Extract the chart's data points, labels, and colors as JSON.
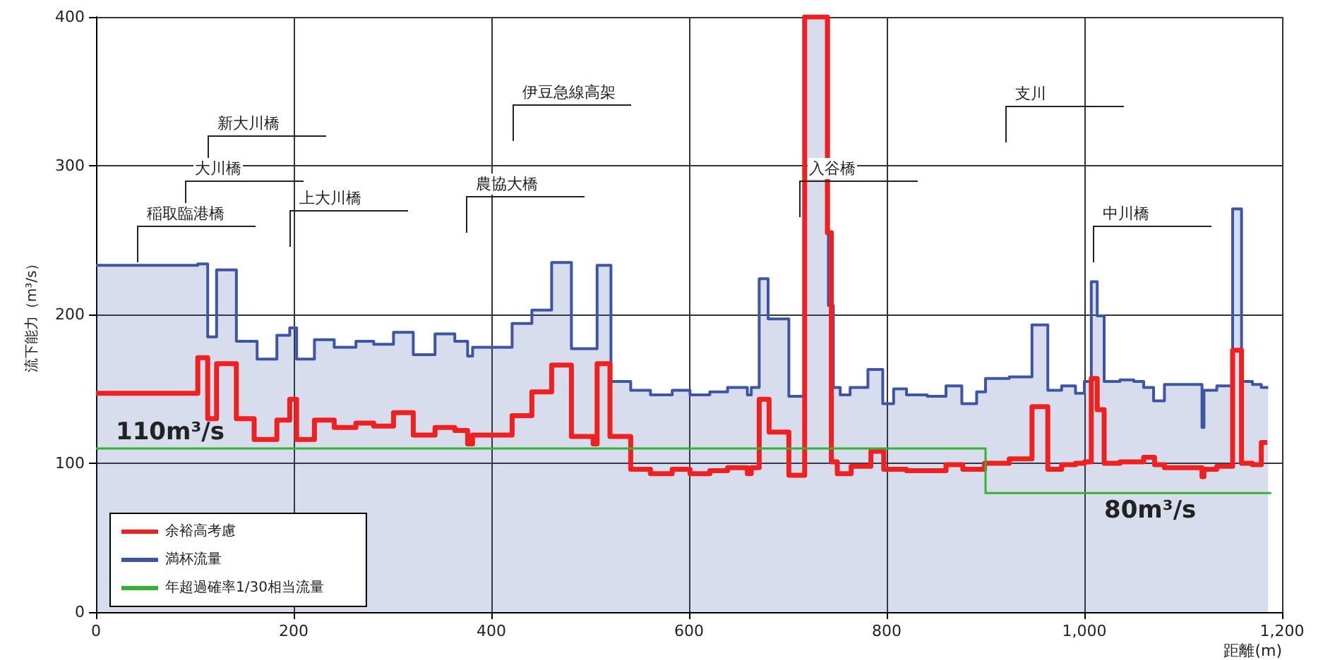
{
  "chart_data": {
    "type": "step",
    "xlabel": "距離(m)",
    "ylabel": "流下能力（m³/s）",
    "xlim": [
      0,
      1200
    ],
    "xticks": [
      0,
      200,
      400,
      600,
      800,
      {
        "value": 1000,
        "label": "1,000"
      },
      {
        "value": 1200,
        "label": "1,200"
      }
    ],
    "ylim": [
      0,
      400
    ],
    "yticks": [
      0,
      100,
      200,
      300,
      400
    ],
    "grid": true,
    "legend": "bottom left",
    "marker": "none",
    "line_style": "solid",
    "series": [
      {
        "name": "余裕高考慮",
        "color": "#ee2020",
        "x": [
          0,
          103,
          113,
          122,
          142,
          160,
          183,
          196,
          203,
          221,
          241,
          263,
          281,
          301,
          321,
          343,
          363,
          376,
          381,
          421,
          441,
          461,
          481,
          503,
          507,
          520,
          541,
          561,
          583,
          601,
          621,
          639,
          659,
          663,
          671,
          681,
          701,
          717,
          740,
          744,
          750,
          764,
          784,
          797,
          807,
          820,
          860,
          877,
          899,
          924,
          947,
          963,
          977,
          991,
          1000,
          1007,
          1013,
          1020,
          1036,
          1060,
          1071,
          1081,
          1119,
          1121,
          1134,
          1150,
          1159,
          1170,
          1179,
          1185
        ],
        "values": [
          147,
          171,
          130,
          167,
          130,
          116,
          129,
          143,
          116,
          129,
          124,
          127,
          125,
          134,
          119,
          124,
          122,
          113,
          119,
          132,
          148,
          166,
          118,
          113,
          167,
          118,
          96,
          93,
          96,
          93,
          95,
          97,
          93,
          97,
          143,
          121,
          92,
          400,
          255,
          101,
          93,
          98,
          108,
          96,
          96,
          95,
          99,
          96,
          100,
          103,
          138,
          96,
          99,
          100,
          101,
          157,
          136,
          100,
          101,
          104,
          99,
          97,
          91,
          96,
          98,
          176,
          100,
          99,
          114,
          114
        ]
      },
      {
        "name": "満杯流量",
        "color": "#3d55a5",
        "type": "area",
        "x": [
          0,
          103,
          103,
          113,
          113,
          122,
          122,
          142,
          142,
          163,
          163,
          183,
          183,
          196,
          196,
          203,
          203,
          221,
          221,
          241,
          241,
          263,
          263,
          281,
          281,
          301,
          301,
          321,
          321,
          343,
          343,
          363,
          363,
          376,
          376,
          381,
          381,
          421,
          421,
          441,
          441,
          461,
          461,
          481,
          481,
          507,
          507,
          521,
          521,
          541,
          541,
          561,
          561,
          583,
          583,
          601,
          601,
          621,
          621,
          639,
          639,
          659,
          659,
          663,
          663,
          671,
          671,
          680,
          680,
          701,
          701,
          717,
          717,
          741,
          741,
          746,
          746,
          753,
          753,
          763,
          763,
          781,
          781,
          796,
          796,
          807,
          807,
          820,
          820,
          841,
          841,
          860,
          860,
          876,
          876,
          891,
          891,
          900,
          900,
          924,
          924,
          947,
          947,
          963,
          963,
          977,
          977,
          991,
          991,
          1000,
          1000,
          1007,
          1007,
          1013,
          1013,
          1020,
          1020,
          1036,
          1036,
          1050,
          1050,
          1060,
          1060,
          1070,
          1070,
          1081,
          1081,
          1119,
          1119,
          1121,
          1121,
          1134,
          1134,
          1150,
          1150,
          1159,
          1159,
          1170,
          1170,
          1179,
          1179,
          1186
        ],
        "values": [
          233,
          233,
          234,
          234,
          185,
          185,
          230,
          230,
          182,
          182,
          170,
          170,
          186,
          186,
          191,
          191,
          170,
          170,
          183,
          183,
          178,
          178,
          182,
          182,
          180,
          180,
          188,
          188,
          173,
          173,
          187,
          187,
          182,
          182,
          172,
          172,
          178,
          178,
          194,
          194,
          203,
          203,
          235,
          235,
          177,
          177,
          233,
          233,
          155,
          155,
          149,
          149,
          146,
          146,
          149,
          149,
          146,
          146,
          148,
          148,
          151,
          151,
          146,
          146,
          151,
          151,
          224,
          224,
          197,
          197,
          145,
          145,
          400,
          400,
          206,
          206,
          151,
          151,
          146,
          146,
          151,
          151,
          163,
          163,
          140,
          140,
          150,
          150,
          146,
          146,
          145,
          145,
          152,
          152,
          140,
          140,
          148,
          148,
          157,
          157,
          158,
          158,
          193,
          193,
          149,
          149,
          152,
          152,
          147,
          147,
          155,
          155,
          222,
          222,
          199,
          199,
          155,
          155,
          156,
          156,
          155,
          155,
          151,
          151,
          142,
          142,
          153,
          153,
          124,
          124,
          149,
          149,
          152,
          152,
          271,
          271,
          155,
          155,
          153,
          153,
          151,
          151
        ]
      },
      {
        "name": "年超過確率1/30相当流量",
        "color": "#33b233",
        "x": [
          0,
          900,
          1189
        ],
        "values": [
          110,
          80,
          80
        ]
      }
    ],
    "annotations": [
      "稲取臨港橋",
      "大川橋",
      "新大川橋",
      "上大川橋",
      "農協大橋",
      "伊豆急線高架",
      "入谷橋",
      "支川",
      "中川橋",
      {
        "text": "110m³/s",
        "x": 20,
        "y": 110
      },
      {
        "text": "80m³/s",
        "x": 1020,
        "y": 80
      }
    ]
  }
}
